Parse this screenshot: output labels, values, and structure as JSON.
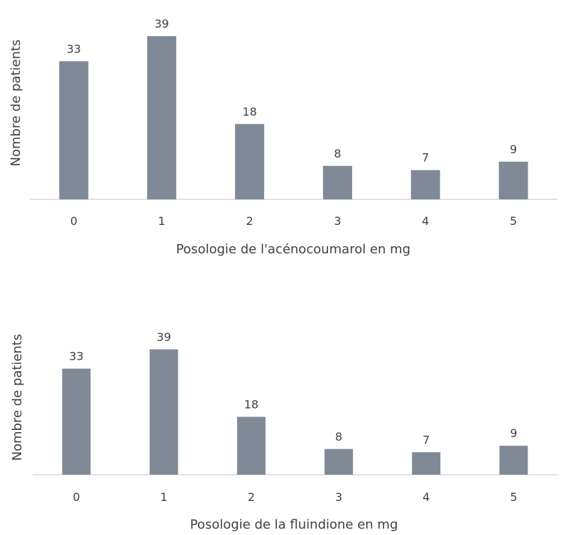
{
  "colors": {
    "bar": "#808a96",
    "axis": "#d9d9d9",
    "text": "#404040"
  },
  "chart_data": [
    {
      "type": "bar",
      "categories": [
        "0",
        "1",
        "2",
        "3",
        "4",
        "5"
      ],
      "values": [
        33,
        39,
        18,
        8,
        7,
        9
      ],
      "xlabel": "Posologie de l'acénocoumarol en mg",
      "ylabel": "Nombre de patients",
      "ylim": [
        0,
        40
      ],
      "grid": false,
      "legend": "none"
    },
    {
      "type": "bar",
      "categories": [
        "0",
        "1",
        "2",
        "3",
        "4",
        "5"
      ],
      "values": [
        33,
        39,
        18,
        8,
        7,
        9
      ],
      "xlabel": "Posologie de la fluindione en mg",
      "ylabel": "Nombre de patients",
      "ylim": [
        0,
        40
      ],
      "grid": false,
      "legend": "none"
    }
  ]
}
